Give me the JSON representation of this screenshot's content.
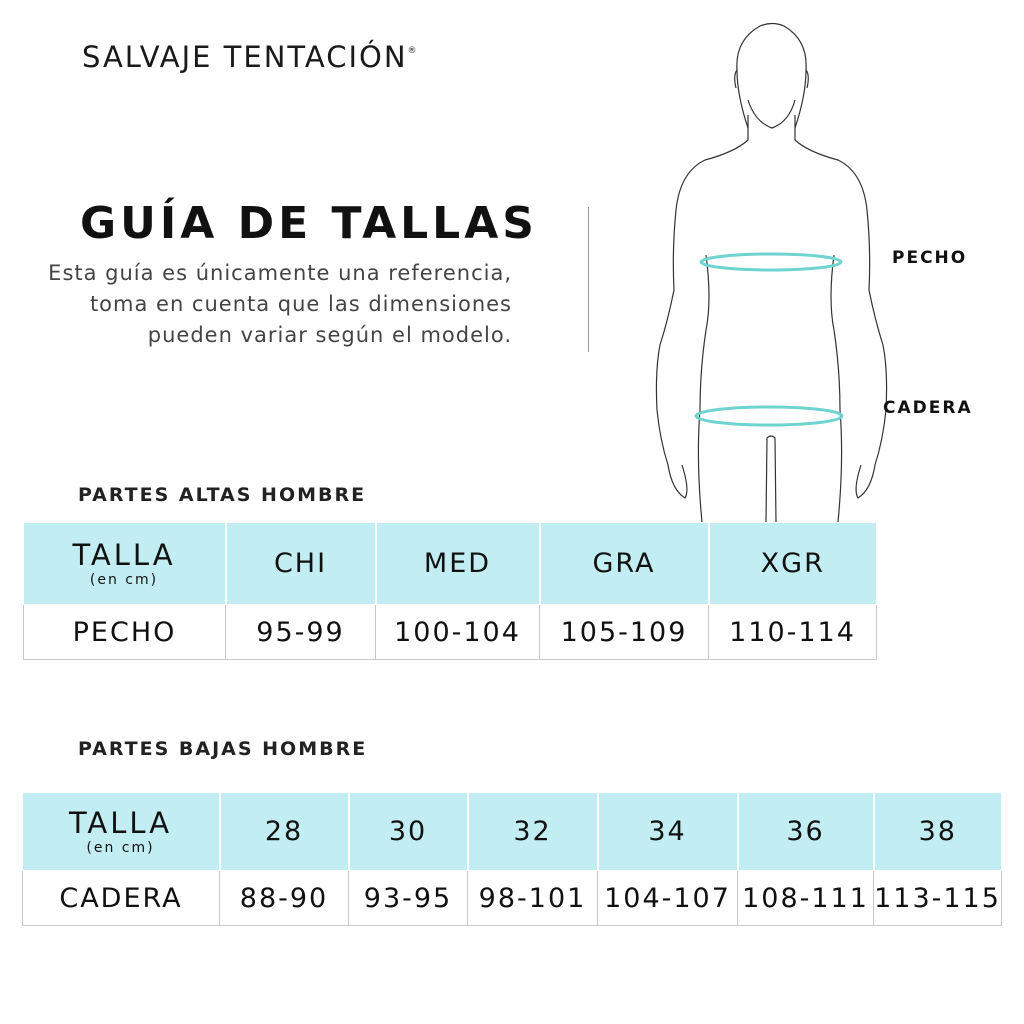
{
  "brand": {
    "name": "SALVAJE TENTACIÓN",
    "mark": "®"
  },
  "guide": {
    "title": "GUÍA DE TALLAS",
    "description": "Esta guía es únicamente una referencia, toma en cuenta que las dimensiones pueden variar según el modelo."
  },
  "figure": {
    "labels": {
      "chest": "PECHO",
      "hip": "CADERA"
    },
    "ring_color": "#6fd3cf"
  },
  "colors": {
    "header_bg": "#c2eef3"
  },
  "upper": {
    "title": "PARTES ALTAS HOMBRE",
    "header_label": "TALLA",
    "header_unit": "(en cm)",
    "sizes": [
      "CHI",
      "MED",
      "GRA",
      "XGR"
    ],
    "row_label": "PECHO",
    "values": [
      "95-99",
      "100-104",
      "105-109",
      "110-114"
    ]
  },
  "lower": {
    "title": "PARTES BAJAS HOMBRE",
    "header_label": "TALLA",
    "header_unit": "(en cm)",
    "sizes": [
      "28",
      "30",
      "32",
      "34",
      "36",
      "38"
    ],
    "row_label": "CADERA",
    "values": [
      "88-90",
      "93-95",
      "98-101",
      "104-107",
      "108-111",
      "113-115"
    ]
  }
}
